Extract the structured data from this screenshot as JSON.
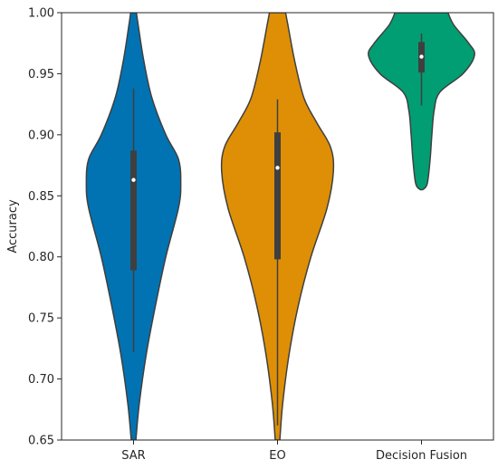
{
  "chart_data": {
    "type": "violin",
    "title": "",
    "xlabel": "",
    "ylabel": "Accuracy",
    "ylim": [
      0.65,
      1.0
    ],
    "yticks": [
      "0.65",
      "0.70",
      "0.75",
      "0.80",
      "0.85",
      "0.90",
      "0.95",
      "1.00"
    ],
    "categories": [
      "SAR",
      "EO",
      "Decision Fusion"
    ],
    "grid": false,
    "legend": "none",
    "series": [
      {
        "category": "SAR",
        "color": "#0173b2",
        "median": 0.863,
        "q1": 0.789,
        "q3": 0.887,
        "whisker_low": 0.722,
        "whisker_high": 0.938,
        "density_y": [
          0.65,
          0.68,
          0.72,
          0.76,
          0.8,
          0.84,
          0.86,
          0.88,
          0.9,
          0.93,
          0.96,
          0.99,
          1.0
        ],
        "density_w": [
          0.04,
          0.1,
          0.22,
          0.38,
          0.56,
          0.78,
          0.82,
          0.78,
          0.56,
          0.32,
          0.18,
          0.08,
          0.05
        ]
      },
      {
        "category": "EO",
        "color": "#de8f05",
        "median": 0.873,
        "q1": 0.798,
        "q3": 0.902,
        "whisker_low": 0.662,
        "whisker_high": 0.929,
        "density_y": [
          0.65,
          0.68,
          0.72,
          0.76,
          0.8,
          0.84,
          0.87,
          0.89,
          0.91,
          0.93,
          0.96,
          0.99,
          1.0
        ],
        "density_w": [
          0.04,
          0.09,
          0.2,
          0.36,
          0.58,
          0.86,
          0.97,
          0.92,
          0.68,
          0.46,
          0.3,
          0.18,
          0.14
        ]
      },
      {
        "category": "Decision Fusion",
        "color": "#029e73",
        "median": 0.964,
        "q1": 0.951,
        "q3": 0.976,
        "whisker_low": 0.924,
        "whisker_high": 0.983,
        "density_y": [
          0.855,
          0.86,
          0.88,
          0.9,
          0.92,
          0.935,
          0.95,
          0.965,
          0.975,
          0.99,
          1.0
        ],
        "density_w": [
          0.02,
          0.1,
          0.15,
          0.18,
          0.22,
          0.32,
          0.72,
          0.92,
          0.82,
          0.56,
          0.46
        ]
      }
    ]
  }
}
